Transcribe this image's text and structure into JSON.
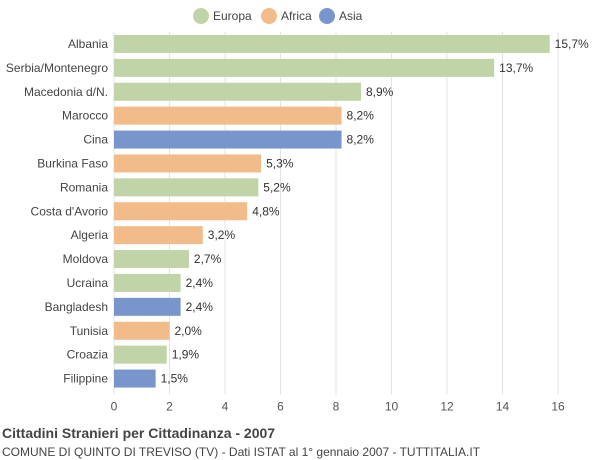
{
  "chart_data": {
    "type": "bar",
    "orientation": "horizontal",
    "title": "Cittadini Stranieri per Cittadinanza - 2007",
    "subtitle": "COMUNE DI QUINTO DI TREVISO (TV) - Dati ISTAT al 1° gennaio 2007 - TUTTITALIA.IT",
    "xlim": [
      0,
      16
    ],
    "xticks": [
      0,
      2,
      4,
      6,
      8,
      10,
      12,
      14,
      16
    ],
    "grid": true,
    "legend_position": "top-center",
    "legend": [
      {
        "name": "Europa",
        "color": "#c0d4a8"
      },
      {
        "name": "Africa",
        "color": "#f2bc8a"
      },
      {
        "name": "Asia",
        "color": "#7896cc"
      }
    ],
    "bars": [
      {
        "category": "Albania",
        "value": 15.7,
        "label": "15,7%",
        "group": "Europa"
      },
      {
        "category": "Serbia/Montenegro",
        "value": 13.7,
        "label": "13,7%",
        "group": "Europa"
      },
      {
        "category": "Macedonia d/N.",
        "value": 8.9,
        "label": "8,9%",
        "group": "Europa"
      },
      {
        "category": "Marocco",
        "value": 8.2,
        "label": "8,2%",
        "group": "Africa"
      },
      {
        "category": "Cina",
        "value": 8.2,
        "label": "8,2%",
        "group": "Asia"
      },
      {
        "category": "Burkina Faso",
        "value": 5.3,
        "label": "5,3%",
        "group": "Africa"
      },
      {
        "category": "Romania",
        "value": 5.2,
        "label": "5,2%",
        "group": "Europa"
      },
      {
        "category": "Costa d'Avorio",
        "value": 4.8,
        "label": "4,8%",
        "group": "Africa"
      },
      {
        "category": "Algeria",
        "value": 3.2,
        "label": "3,2%",
        "group": "Africa"
      },
      {
        "category": "Moldova",
        "value": 2.7,
        "label": "2,7%",
        "group": "Europa"
      },
      {
        "category": "Ucraina",
        "value": 2.4,
        "label": "2,4%",
        "group": "Europa"
      },
      {
        "category": "Bangladesh",
        "value": 2.4,
        "label": "2,4%",
        "group": "Asia"
      },
      {
        "category": "Tunisia",
        "value": 2.0,
        "label": "2,0%",
        "group": "Africa"
      },
      {
        "category": "Croazia",
        "value": 1.9,
        "label": "1,9%",
        "group": "Europa"
      },
      {
        "category": "Filippine",
        "value": 1.5,
        "label": "1,5%",
        "group": "Asia"
      }
    ]
  }
}
